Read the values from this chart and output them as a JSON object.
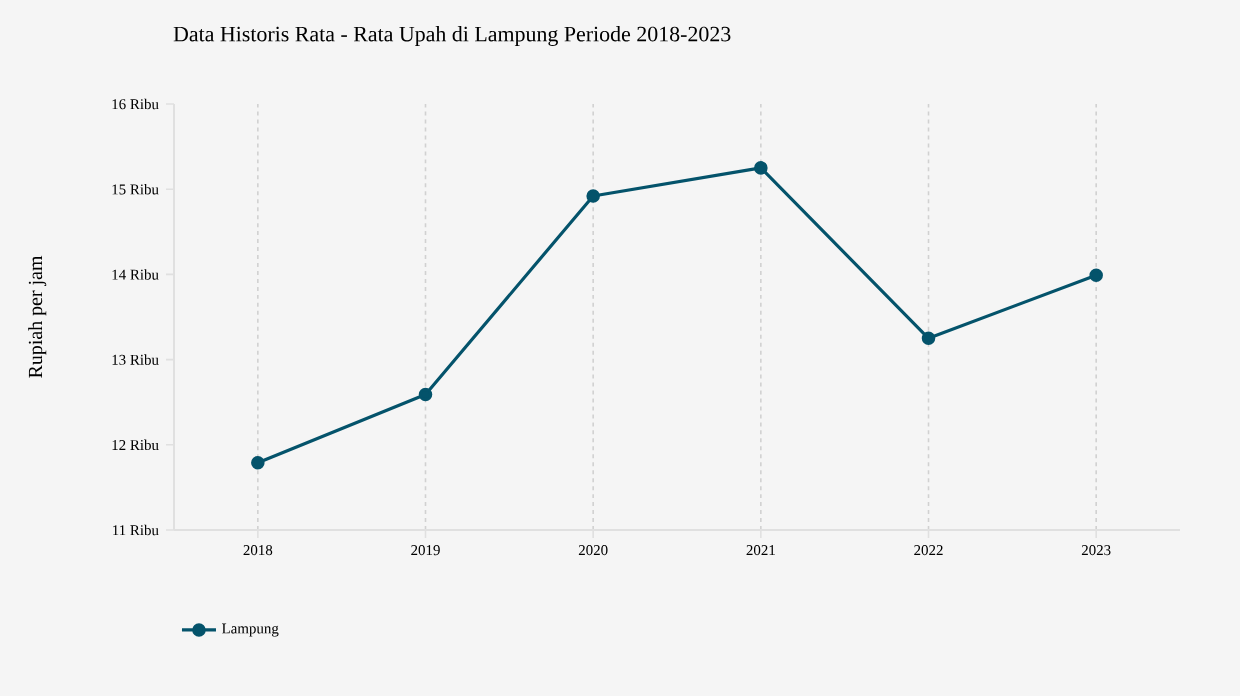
{
  "chart_data": {
    "type": "line",
    "title": "Data Historis Rata - Rata Upah di Lampung Periode 2018-2023",
    "ylabel": "Rupiah per jam",
    "categories": [
      "2018",
      "2019",
      "2020",
      "2021",
      "2022",
      "2023"
    ],
    "series": [
      {
        "name": "Lampung",
        "color": "#04536b",
        "values": [
          11.79,
          12.59,
          14.92,
          15.25,
          13.25,
          13.99
        ]
      }
    ],
    "ylim": [
      11,
      16
    ],
    "yticks": [
      {
        "value": 11,
        "label": "11 Ribu"
      },
      {
        "value": 12,
        "label": "12 Ribu"
      },
      {
        "value": 13,
        "label": "13 Ribu"
      },
      {
        "value": 14,
        "label": "14 Ribu"
      },
      {
        "value": 15,
        "label": "15 Ribu"
      },
      {
        "value": 16,
        "label": "16 Ribu"
      }
    ],
    "grid": "x",
    "legend": "bottom left",
    "marker": "circle",
    "line_style": "solid"
  }
}
